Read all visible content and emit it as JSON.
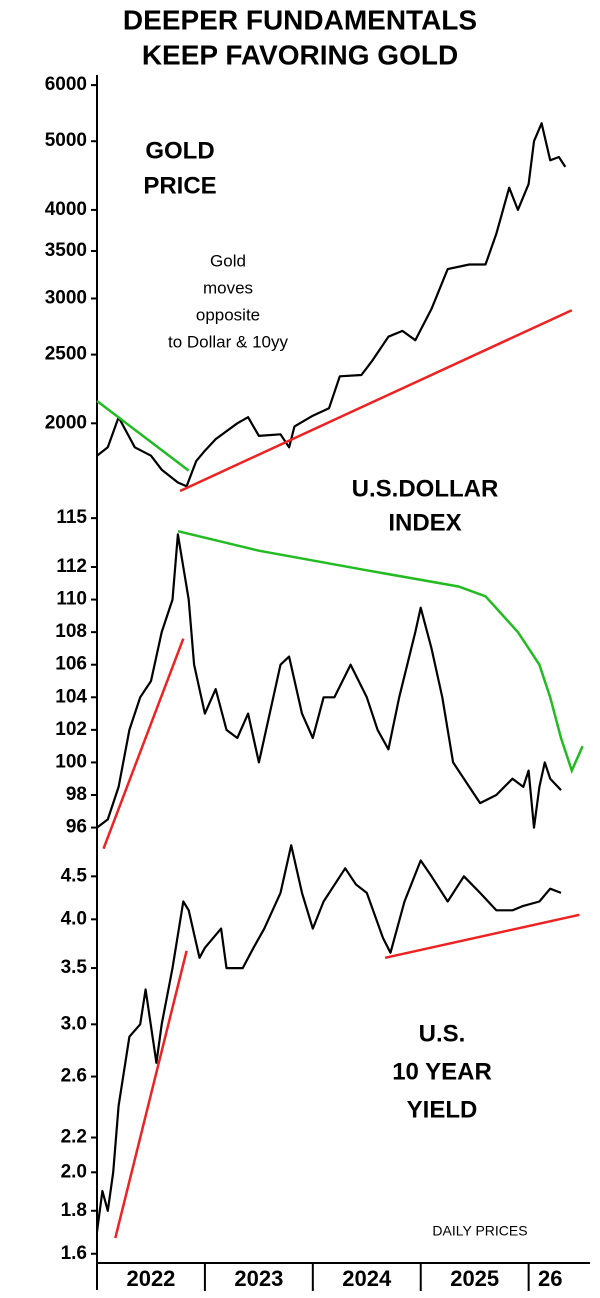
{
  "chart_data": [
    {
      "type": "line",
      "log": true,
      "title": [
        "DEEPER FUNDAMENTALS",
        "KEEP FAVORING GOLD"
      ],
      "annotations": [
        [
          "GOLD",
          "PRICE"
        ],
        [
          "Gold",
          "moves",
          "opposite",
          "to Dollar & 10yy"
        ]
      ],
      "ylim": [
        1600,
        6200
      ],
      "yticks": [
        2000,
        2500,
        3000,
        3500,
        4000,
        5000,
        6000
      ],
      "xlim": [
        2022,
        2026.55
      ],
      "x": [
        2022.0,
        2022.1,
        2022.2,
        2022.35,
        2022.5,
        2022.6,
        2022.75,
        2022.83,
        2022.92,
        2023.0,
        2023.1,
        2023.3,
        2023.4,
        2023.5,
        2023.7,
        2023.78,
        2023.83,
        2024.0,
        2024.15,
        2024.25,
        2024.45,
        2024.55,
        2024.7,
        2024.83,
        2024.95,
        2025.1,
        2025.25,
        2025.45,
        2025.6,
        2025.7,
        2025.82,
        2025.9,
        2026.0,
        2026.05,
        2026.12,
        2026.2,
        2026.28,
        2026.34
      ],
      "series": [
        {
          "color": "#000000",
          "values": [
            1800,
            1850,
            2040,
            1850,
            1800,
            1720,
            1650,
            1630,
            1770,
            1830,
            1900,
            2000,
            2040,
            1920,
            1930,
            1850,
            1980,
            2050,
            2100,
            2330,
            2340,
            2450,
            2650,
            2700,
            2620,
            2900,
            3300,
            3350,
            3350,
            3700,
            4300,
            4000,
            4350,
            5000,
            5300,
            4700,
            4750,
            4600
          ]
        }
      ],
      "trendlines": [
        {
          "color": "#22bb22",
          "x": [
            2022.0,
            2022.85
          ],
          "values": [
            2150,
            1715
          ]
        },
        {
          "color": "#ee2222",
          "x": [
            2022.77,
            2026.4
          ],
          "values": [
            1605,
            2888
          ]
        }
      ]
    },
    {
      "type": "line",
      "log": false,
      "annotations": [
        [
          "U.S.DOLLAR",
          "INDEX"
        ]
      ],
      "ylim": [
        94.5,
        115.5
      ],
      "yticks": [
        96,
        98,
        100,
        102,
        104,
        106,
        108,
        110,
        112,
        115
      ],
      "xlim": [
        2022,
        2026.55
      ],
      "x": [
        2022.0,
        2022.1,
        2022.2,
        2022.3,
        2022.4,
        2022.5,
        2022.6,
        2022.7,
        2022.75,
        2022.8,
        2022.85,
        2022.9,
        2023.0,
        2023.1,
        2023.2,
        2023.3,
        2023.4,
        2023.5,
        2023.6,
        2023.7,
        2023.78,
        2023.9,
        2024.0,
        2024.1,
        2024.2,
        2024.35,
        2024.5,
        2024.6,
        2024.7,
        2024.8,
        2024.95,
        2025.0,
        2025.1,
        2025.2,
        2025.3,
        2025.45,
        2025.55,
        2025.7,
        2025.85,
        2025.95,
        2026.0,
        2026.05,
        2026.1,
        2026.15,
        2026.2,
        2026.3
      ],
      "series": [
        {
          "color": "#000000",
          "values": [
            96,
            96.5,
            98.5,
            102,
            104,
            105,
            108,
            110,
            114,
            112,
            110,
            106,
            103,
            104.5,
            102,
            101.5,
            103,
            100,
            103,
            106,
            106.5,
            103,
            101.5,
            104,
            104,
            106,
            104,
            102,
            100.8,
            104,
            108,
            109.5,
            107,
            104,
            100,
            98.5,
            97.5,
            98,
            99,
            98.5,
            99.5,
            96,
            98.5,
            100,
            99,
            98.3
          ]
        }
      ],
      "trendlines": [
        {
          "color": "#22bb22",
          "x": [
            2022.75,
            2023.5,
            2024.5,
            2025.35,
            2025.6,
            2025.9,
            2026.1,
            2026.2,
            2026.3,
            2026.4,
            2026.5
          ],
          "values": [
            114.2,
            113,
            111.8,
            110.8,
            110.2,
            108,
            106,
            104,
            101.5,
            99.5,
            101
          ]
        },
        {
          "color": "#ee2222",
          "x": [
            2022.06,
            2022.8
          ],
          "values": [
            94.7,
            107.6
          ]
        }
      ]
    },
    {
      "type": "line",
      "log": true,
      "annotations": [
        [
          "U.S.",
          "10 YEAR",
          "YIELD"
        ],
        [
          "DAILY PRICES"
        ]
      ],
      "ylim": [
        1.56,
        4.85
      ],
      "yticks": [
        1.6,
        1.8,
        {
          "value": 2,
          "label": "2.0"
        },
        2.2,
        2.6,
        {
          "value": 3,
          "label": "3.0"
        },
        3.5,
        {
          "value": 4,
          "label": "4.0"
        },
        4.5
      ],
      "xlim": [
        2022,
        2026.55
      ],
      "xticks": [
        2023,
        2024,
        2025,
        2026
      ],
      "xlabels": [
        {
          "value": 2022.5,
          "label": "2022"
        },
        {
          "value": 2023.5,
          "label": "2023"
        },
        {
          "value": 2024.5,
          "label": "2024"
        },
        {
          "value": 2025.5,
          "label": "2025"
        },
        {
          "value": 2026.2,
          "label": "26"
        }
      ],
      "x": [
        2022.0,
        2022.05,
        2022.1,
        2022.15,
        2022.2,
        2022.3,
        2022.4,
        2022.45,
        2022.55,
        2022.6,
        2022.7,
        2022.8,
        2022.85,
        2022.95,
        2023.0,
        2023.15,
        2023.2,
        2023.35,
        2023.45,
        2023.55,
        2023.7,
        2023.8,
        2023.9,
        2024.0,
        2024.1,
        2024.3,
        2024.4,
        2024.5,
        2024.65,
        2024.72,
        2024.85,
        2025.0,
        2025.1,
        2025.25,
        2025.4,
        2025.55,
        2025.7,
        2025.85,
        2025.95,
        2026.1,
        2026.2,
        2026.3
      ],
      "series": [
        {
          "color": "#000000",
          "values": [
            1.7,
            1.9,
            1.8,
            2.0,
            2.4,
            2.9,
            3.0,
            3.3,
            2.7,
            3.0,
            3.5,
            4.2,
            4.1,
            3.6,
            3.7,
            3.9,
            3.5,
            3.5,
            3.7,
            3.9,
            4.3,
            4.9,
            4.3,
            3.9,
            4.2,
            4.6,
            4.4,
            4.3,
            3.8,
            3.65,
            4.2,
            4.7,
            4.5,
            4.2,
            4.5,
            4.3,
            4.1,
            4.1,
            4.15,
            4.2,
            4.35,
            4.3
          ]
        }
      ],
      "trendlines": [
        {
          "color": "#ee2222",
          "x": [
            2022.17,
            2022.83
          ],
          "values": [
            1.67,
            3.67
          ]
        },
        {
          "color": "#ee2222",
          "x": [
            2024.67,
            2026.47
          ],
          "values": [
            3.6,
            4.05
          ]
        }
      ]
    }
  ]
}
